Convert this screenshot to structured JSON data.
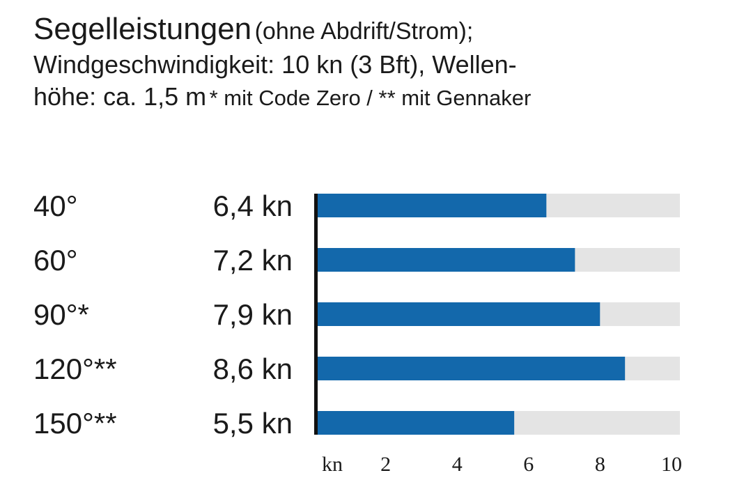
{
  "header": {
    "title": "Segelleistungen",
    "title_note": "(ohne Abdrift/Strom);",
    "line2": "Windgeschwindigkeit: 10 kn (3 Bft), Wellen-",
    "line3_main": "höhe: ca. 1,5 m",
    "line3_note": "* mit Code Zero / ** mit Gennaker"
  },
  "chart_data": {
    "type": "bar",
    "orientation": "horizontal",
    "categories": [
      "40°",
      "60°",
      "90°*",
      "120°**",
      "150°**"
    ],
    "values": [
      6.4,
      7.2,
      7.9,
      8.6,
      5.5
    ],
    "value_labels": [
      "6,4 kn",
      "7,2 kn",
      "7,9 kn",
      "8,6 kn",
      "5,5 kn"
    ],
    "xlim": [
      0,
      11
    ],
    "x_unit_label": "kn",
    "x_ticks": [
      2,
      4,
      6,
      8,
      10
    ],
    "x_tick_labels": [
      "2",
      "4",
      "6",
      "8",
      "10"
    ],
    "grid": false,
    "colors": {
      "bar": "#1368ab",
      "track": "#e4e4e4",
      "axis": "#111111"
    }
  }
}
